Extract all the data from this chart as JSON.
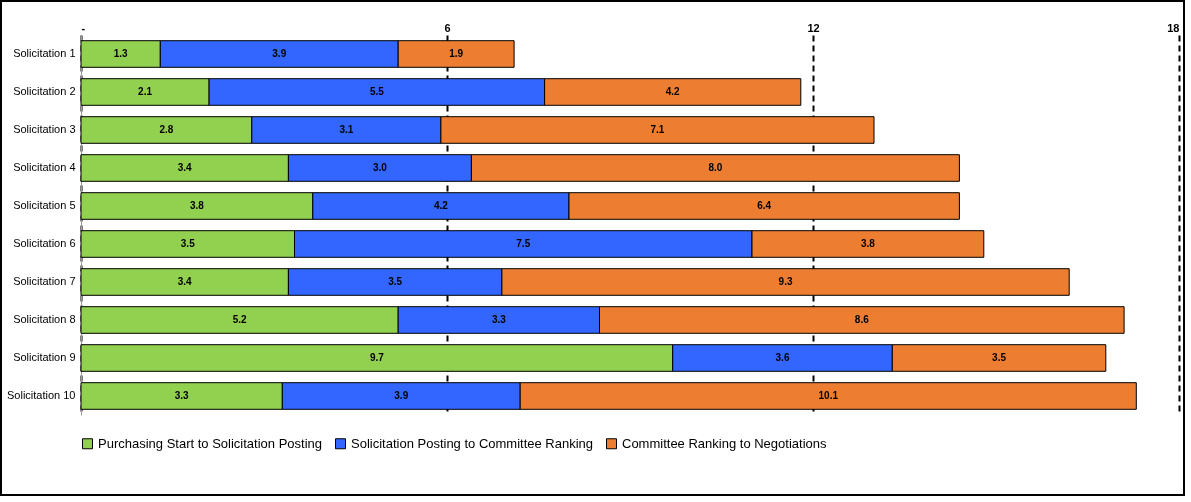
{
  "chart_data": {
    "type": "bar",
    "orientation": "horizontal",
    "stacked": true,
    "categories": [
      "Solicitation 1",
      "Solicitation 2",
      "Solicitation 3",
      "Solicitation 4",
      "Solicitation 5",
      "Solicitation 6",
      "Solicitation 7",
      "Solicitation 8",
      "Solicitation 9",
      "Solicitation 10"
    ],
    "series": [
      {
        "name": "Purchasing Start to Solicitation Posting",
        "color": "#92d050",
        "values": [
          1.3,
          2.1,
          2.8,
          3.4,
          3.8,
          3.5,
          3.4,
          5.2,
          9.7,
          3.3
        ],
        "value_labels": [
          "1.3",
          "2.1",
          "2.8",
          "3.4",
          "3.8",
          "3.5",
          "3.4",
          "5.2",
          "9.7",
          "3.3"
        ]
      },
      {
        "name": "Solicitation Posting to Committee Ranking",
        "color": "#3366ff",
        "values": [
          3.9,
          5.5,
          3.1,
          3.0,
          4.2,
          7.5,
          3.5,
          3.3,
          3.6,
          3.9
        ],
        "value_labels": [
          "3.9",
          "5.5",
          "3.1",
          "3.0",
          "4.2",
          "7.5",
          "3.5",
          "3.3",
          "3.6",
          "3.9"
        ]
      },
      {
        "name": "Committee Ranking to Negotiations",
        "color": "#ed7d31",
        "values": [
          1.9,
          4.2,
          7.1,
          8.0,
          6.4,
          3.8,
          9.3,
          8.6,
          3.5,
          10.1
        ],
        "value_labels": [
          "1.9",
          "4.2",
          "7.1",
          "8.0",
          "6.4",
          "3.8",
          "9.3",
          "8.6",
          "3.5",
          "10.1"
        ]
      }
    ],
    "xlim": [
      0,
      18
    ],
    "xticks": [
      {
        "value": 0,
        "label": "-"
      },
      6,
      12,
      18
    ],
    "grid": "x",
    "legend": "bottom"
  }
}
